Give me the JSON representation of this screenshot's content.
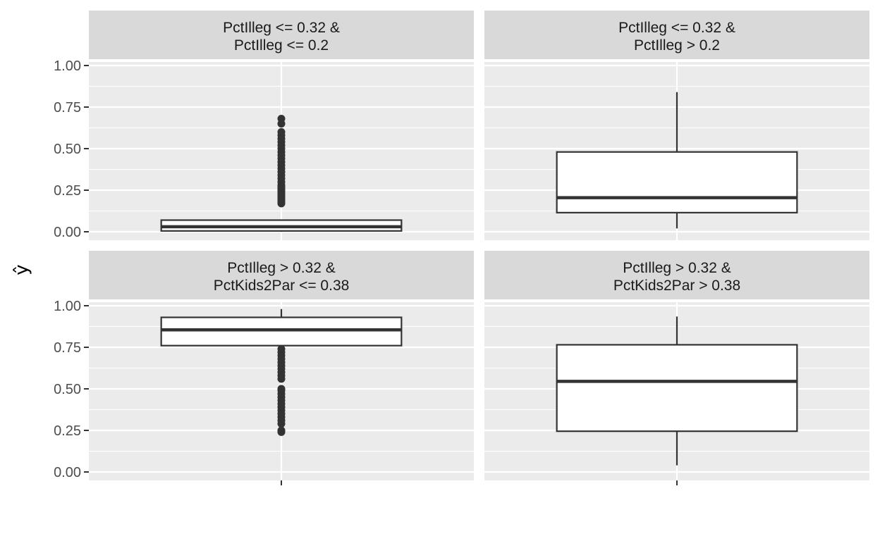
{
  "chart_data": {
    "type": "boxplot",
    "ylabel": "ŷ",
    "xlabel": "",
    "ylim": [
      -0.05,
      1.0
    ],
    "yticks": [
      "0.00",
      "0.25",
      "0.50",
      "0.75",
      "1.00"
    ],
    "grid": true,
    "facets": [
      {
        "strip": [
          "PctIlleg <= 0.32 &",
          "PctIlleg <= 0.2"
        ],
        "box": {
          "whisker_low": 0.0,
          "q1": 0.005,
          "median": 0.03,
          "q3": 0.07,
          "whisker_high": 0.07
        },
        "outliers": [
          0.17,
          0.18,
          0.19,
          0.2,
          0.21,
          0.22,
          0.23,
          0.24,
          0.25,
          0.26,
          0.27,
          0.28,
          0.3,
          0.32,
          0.34,
          0.36,
          0.38,
          0.4,
          0.42,
          0.44,
          0.46,
          0.48,
          0.5,
          0.52,
          0.54,
          0.56,
          0.58,
          0.6,
          0.65,
          0.68
        ]
      },
      {
        "strip": [
          "PctIlleg <= 0.32 &",
          "PctIlleg > 0.2"
        ],
        "box": {
          "whisker_low": 0.02,
          "q1": 0.115,
          "median": 0.205,
          "q3": 0.48,
          "whisker_high": 0.84
        },
        "outliers": []
      },
      {
        "strip": [
          "PctIlleg > 0.32 &",
          "PctKids2Par <= 0.38"
        ],
        "box": {
          "whisker_low": 0.76,
          "q1": 0.76,
          "median": 0.855,
          "q3": 0.93,
          "whisker_high": 0.98
        },
        "outliers": [
          0.24,
          0.25,
          0.29,
          0.31,
          0.33,
          0.35,
          0.37,
          0.39,
          0.41,
          0.43,
          0.45,
          0.47,
          0.49,
          0.5,
          0.56,
          0.58,
          0.6,
          0.62,
          0.64,
          0.66,
          0.68,
          0.7,
          0.72,
          0.74
        ]
      },
      {
        "strip": [
          "PctIlleg > 0.32 &",
          "PctKids2Par > 0.38"
        ],
        "box": {
          "whisker_low": 0.04,
          "q1": 0.245,
          "median": 0.545,
          "q3": 0.765,
          "whisker_high": 0.935
        },
        "outliers": []
      }
    ]
  },
  "colors": {
    "panel_bg": "#ebebeb",
    "strip_bg": "#d9d9d9",
    "grid": "#ffffff",
    "box_fill": "#ffffff",
    "box_line": "#333333"
  }
}
